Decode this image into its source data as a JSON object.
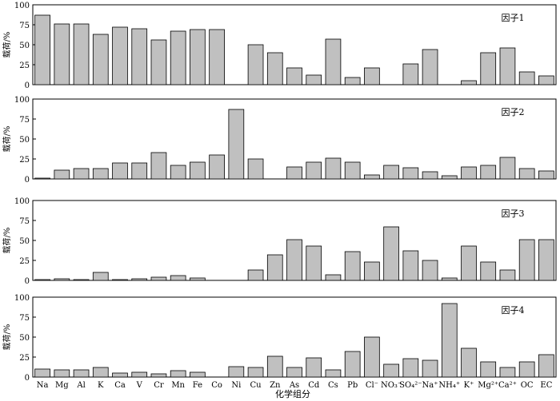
{
  "chart_data": {
    "type": "bar",
    "categories": [
      "Na",
      "Mg",
      "Al",
      "K",
      "Ca",
      "V",
      "Cr",
      "Mn",
      "Fe",
      "Co",
      "Ni",
      "Cu",
      "Zn",
      "As",
      "Cd",
      "Cs",
      "Pb",
      "Cl⁻",
      "NO₃⁻",
      "SO₄²⁻",
      "Na⁺",
      "NH₄⁺",
      "K⁺",
      "Mg²⁺",
      "Ca²⁺",
      "OC",
      "EC"
    ],
    "xlabel": "化学组分",
    "ylabel": "载荷/%",
    "ylim": [
      0,
      100
    ],
    "yticks": [
      0,
      25,
      50,
      75,
      100
    ],
    "grid": false,
    "colors": {
      "bar_fill": "#c0c0c0",
      "bar_stroke": "#000000"
    },
    "panels": [
      {
        "name": "因子1",
        "values": [
          87,
          76,
          76,
          63,
          72,
          70,
          56,
          67,
          69,
          69,
          null,
          50,
          40,
          21,
          12,
          57,
          9,
          21,
          null,
          26,
          44,
          null,
          5,
          40,
          46,
          16,
          11
        ]
      },
      {
        "name": "因子2",
        "values": [
          1,
          11,
          13,
          13,
          20,
          20,
          33,
          17,
          21,
          30,
          87,
          25,
          null,
          15,
          21,
          26,
          21,
          5,
          17,
          14,
          9,
          4,
          15,
          17,
          27,
          13,
          10
        ]
      },
      {
        "name": "因子3",
        "values": [
          1,
          2,
          1,
          10,
          1,
          2,
          4,
          6,
          3,
          null,
          null,
          13,
          32,
          51,
          43,
          7,
          36,
          23,
          67,
          37,
          25,
          3,
          43,
          23,
          13,
          51,
          51
        ]
      },
      {
        "name": "因子4",
        "values": [
          10,
          9,
          9,
          12,
          5,
          6,
          4,
          8,
          6,
          null,
          13,
          12,
          26,
          12,
          24,
          9,
          32,
          50,
          16,
          23,
          21,
          92,
          36,
          19,
          12,
          19,
          28
        ]
      }
    ]
  }
}
